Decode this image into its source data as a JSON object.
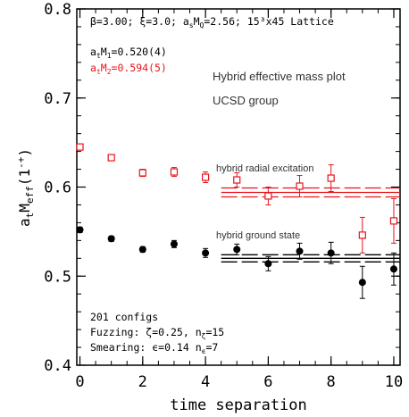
{
  "chart_data": {
    "type": "scatter",
    "xlabel": "time separation",
    "ylabel_main": "a",
    "ylabel_sub1": "t",
    "ylabel_mid": "M",
    "ylabel_sub2": "eff",
    "ylabel_paren": "(1",
    "ylabel_sup": "-+",
    "ylabel_close": ")",
    "xlim": [
      -0.1,
      10.2
    ],
    "ylim": [
      0.4,
      0.8
    ],
    "x_ticks": [
      0,
      2,
      4,
      6,
      8,
      10
    ],
    "y_ticks": [
      {
        "value": 0.4,
        "label": "0.4"
      },
      {
        "value": 0.5,
        "label": "0.5"
      },
      {
        "value": 0.6,
        "label": "0.6"
      },
      {
        "value": 0.7,
        "label": "0.7"
      },
      {
        "value": 0.8,
        "label": "0.8"
      }
    ],
    "header_text": "β=3.00; ξ=3.0; a",
    "header_sub_s": "s",
    "header_M": "M",
    "header_sub_Q": "Q",
    "header_rest": "=2.56; 15³x45 Lattice",
    "fit1": {
      "prefix": "a",
      "sub_t": "t",
      "M": "M",
      "sub": "1",
      "value": "=0.520(4)",
      "color": "#000000"
    },
    "fit2": {
      "prefix": "a",
      "sub_t": "t",
      "M": "M",
      "sub": "2",
      "value": "=0.594(5)",
      "color": "#e8141c"
    },
    "annotation_title": "Hybrid effective mass plot",
    "annotation_group": "UCSD group",
    "label_excited": "hybrid radial excitation",
    "label_ground": "hybrid ground state",
    "info_line1": "201 configs",
    "info_line2_a": "Fuzzing: ζ=0.25, n",
    "info_line2_sub": "ζ",
    "info_line2_b": "=15",
    "info_line3_a": "Smearing: ϵ=0.14  n",
    "info_line3_sub": "ϵ",
    "info_line3_b": "=7",
    "series": [
      {
        "name": "hybrid radial excitation",
        "color": "#e8141c",
        "marker": "open-square",
        "points": [
          {
            "x": 0,
            "y": 0.645,
            "err": 0.003
          },
          {
            "x": 1,
            "y": 0.633,
            "err": 0.003
          },
          {
            "x": 2,
            "y": 0.616,
            "err": 0.004
          },
          {
            "x": 3,
            "y": 0.617,
            "err": 0.005
          },
          {
            "x": 4,
            "y": 0.611,
            "err": 0.006
          },
          {
            "x": 5,
            "y": 0.608,
            "err": 0.008
          },
          {
            "x": 6,
            "y": 0.59,
            "err": 0.01
          },
          {
            "x": 7,
            "y": 0.601,
            "err": 0.012
          },
          {
            "x": 8,
            "y": 0.61,
            "err": 0.015
          },
          {
            "x": 9,
            "y": 0.546,
            "err": 0.02
          },
          {
            "x": 10,
            "y": 0.562,
            "err": 0.025
          }
        ],
        "fit": {
          "x_start": 4.5,
          "x_end": 10.2,
          "center": 0.594,
          "upper": 0.599,
          "lower": 0.589
        }
      },
      {
        "name": "hybrid ground state",
        "color": "#000000",
        "marker": "filled-circle",
        "points": [
          {
            "x": 0,
            "y": 0.552,
            "err": 0.003
          },
          {
            "x": 1,
            "y": 0.542,
            "err": 0.003
          },
          {
            "x": 2,
            "y": 0.53,
            "err": 0.003
          },
          {
            "x": 3,
            "y": 0.536,
            "err": 0.004
          },
          {
            "x": 4,
            "y": 0.526,
            "err": 0.005
          },
          {
            "x": 5,
            "y": 0.53,
            "err": 0.006
          },
          {
            "x": 6,
            "y": 0.514,
            "err": 0.008
          },
          {
            "x": 7,
            "y": 0.528,
            "err": 0.009
          },
          {
            "x": 8,
            "y": 0.526,
            "err": 0.012
          },
          {
            "x": 9,
            "y": 0.493,
            "err": 0.018
          },
          {
            "x": 10,
            "y": 0.508,
            "err": 0.018
          }
        ],
        "fit": {
          "x_start": 4.5,
          "x_end": 10.2,
          "center": 0.52,
          "upper": 0.524,
          "lower": 0.516
        }
      }
    ]
  }
}
